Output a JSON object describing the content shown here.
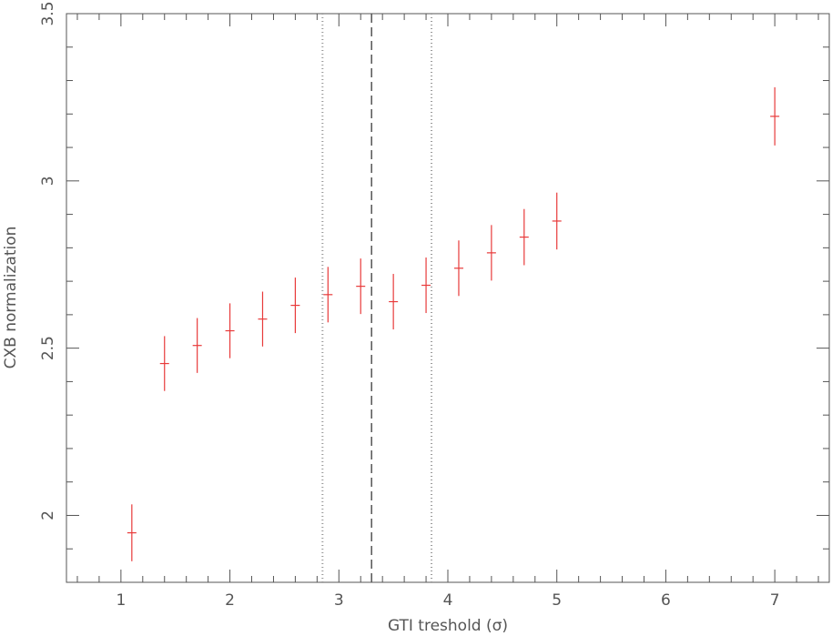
{
  "chart_data": {
    "type": "scatter",
    "xlabel": "GTI treshold (σ)",
    "ylabel": "CXB normalization",
    "xlim": [
      0.5,
      7.5
    ],
    "ylim": [
      1.8,
      3.5
    ],
    "xticks": [
      1,
      2,
      3,
      4,
      5,
      6,
      7
    ],
    "yticks": [
      2,
      2.5,
      3,
      3.5
    ],
    "minor_divisions": 5,
    "series": [
      {
        "color": "#e83a3a",
        "x": [
          1.1,
          1.4,
          1.7,
          2.0,
          2.3,
          2.6,
          2.9,
          3.2,
          3.5,
          3.8,
          4.1,
          4.4,
          4.7,
          5.0,
          7.0
        ],
        "values": [
          1.948,
          2.454,
          2.508,
          2.552,
          2.587,
          2.628,
          2.66,
          2.685,
          2.639,
          2.688,
          2.739,
          2.785,
          2.832,
          2.88,
          3.193
        ],
        "errors": [
          0.085,
          0.082,
          0.082,
          0.082,
          0.082,
          0.083,
          0.083,
          0.083,
          0.083,
          0.083,
          0.083,
          0.083,
          0.084,
          0.085,
          0.087
        ]
      }
    ],
    "vlines": [
      {
        "x": 2.85,
        "style": "dotted"
      },
      {
        "x": 3.3,
        "style": "dashed"
      },
      {
        "x": 3.85,
        "style": "dotted"
      }
    ]
  }
}
